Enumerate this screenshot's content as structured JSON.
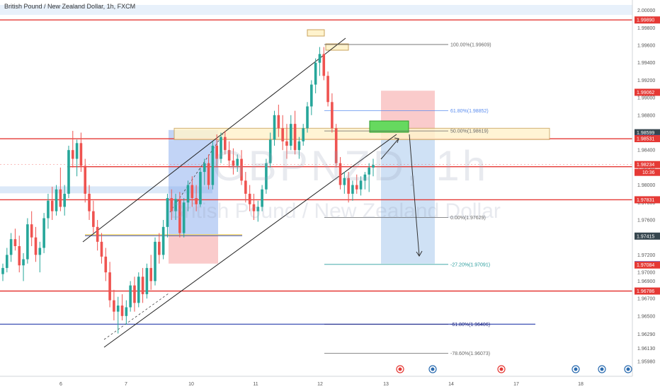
{
  "header": {
    "title": "British Pound / New Zealand Dollar, 1h, FXCM"
  },
  "watermark": {
    "symbol": "GBPNZD, 1h",
    "name": "British Pound / New Zealand Dollar"
  },
  "colors": {
    "up": "#26a69a",
    "down": "#ef5350",
    "resistance": "#e53935",
    "blue_line": "#3f51b5",
    "zone_fill": "#fff3cd",
    "zone_border": "#c9a35c",
    "fib_gray": "#666666",
    "fib_blue": "#5b8def",
    "fib_teal": "#2a9d9d"
  },
  "chart_data": {
    "type": "candlestick",
    "symbol": "GBPNZD",
    "timeframe": "1h",
    "ylim": [
      1.9581,
      2.0007
    ],
    "y_ticks": [
      2.0,
      1.998,
      1.996,
      1.994,
      1.992,
      1.99,
      1.988,
      1.986,
      1.984,
      1.982,
      1.98,
      1.978,
      1.976,
      1.974,
      1.972,
      1.97,
      1.969,
      1.967,
      1.965,
      1.9629,
      1.9613,
      1.9598
    ],
    "y_tick_labels": [
      "2.00000",
      "1.99800",
      "1.99600",
      "1.99400",
      "1.99200",
      "1.99000",
      "1.98800",
      "1.98600",
      "1.98400",
      "1.98200",
      "1.98000",
      "1.97800",
      "1.97600",
      "1.97400",
      "1.97200",
      "1.97000",
      "1.96900",
      "1.96700",
      "1.96500",
      "1.96290",
      "1.96130",
      "1.95980"
    ],
    "x_labels": [
      "6",
      "7",
      "10",
      "11",
      "12",
      "13",
      "14",
      "17",
      "18"
    ],
    "price_labels": [
      {
        "value": 1.9989,
        "text": "1.99890",
        "style": "red"
      },
      {
        "value": 1.99062,
        "text": "1.99062",
        "style": "red"
      },
      {
        "value": 1.98599,
        "text": "1.98599",
        "style": "dark"
      },
      {
        "value": 1.98533,
        "text": "1.98533",
        "style": "blue"
      },
      {
        "value": 1.98531,
        "text": "1.98531",
        "style": "red"
      },
      {
        "value": 1.98234,
        "text": "1.98234",
        "style": "red"
      },
      {
        "value": 1.97831,
        "text": "1.97831",
        "style": "red"
      },
      {
        "value": 1.97415,
        "text": "1.97415",
        "style": "dark"
      },
      {
        "value": 1.97088,
        "text": "1.97088",
        "style": "blue"
      },
      {
        "value": 1.97084,
        "text": "1.97084",
        "style": "red"
      },
      {
        "value": 1.96786,
        "text": "1.96786",
        "style": "red"
      }
    ],
    "countdown": "10:36",
    "horizontal_levels": [
      1.9989,
      1.9853,
      1.9821,
      1.97831,
      1.96786
    ],
    "support_level": 1.96406,
    "supply_zone": [
      1.98531,
      1.98599
    ],
    "fibonacci": [
      {
        "label": "100.00%(1.99609)",
        "value": 1.99609
      },
      {
        "label": "61.80%(1.98852)",
        "value": 1.98852
      },
      {
        "label": "50.00%(1.98619)",
        "value": 1.98619
      },
      {
        "label": "0.00%(1.97629)",
        "value": 1.97629
      },
      {
        "label": "-27.20%(1.97091)",
        "value": 1.97091
      },
      {
        "label": "-61.80%(1.96406)",
        "value": 1.96406
      },
      {
        "label": "-78.60%(1.96073)",
        "value": 1.96073
      }
    ],
    "candles": [
      [
        1.9698,
        1.971,
        1.969,
        1.9705
      ],
      [
        1.9705,
        1.9728,
        1.97,
        1.972
      ],
      [
        1.972,
        1.9745,
        1.9712,
        1.9738
      ],
      [
        1.9738,
        1.975,
        1.9725,
        1.973
      ],
      [
        1.973,
        1.9742,
        1.97,
        1.9708
      ],
      [
        1.9708,
        1.9722,
        1.969,
        1.9715
      ],
      [
        1.9715,
        1.9762,
        1.971,
        1.9755
      ],
      [
        1.9755,
        1.977,
        1.973,
        1.974
      ],
      [
        1.974,
        1.9752,
        1.9712,
        1.972
      ],
      [
        1.972,
        1.9735,
        1.97,
        1.9728
      ],
      [
        1.9728,
        1.9768,
        1.9722,
        1.9762
      ],
      [
        1.9762,
        1.979,
        1.975,
        1.9782
      ],
      [
        1.9782,
        1.9798,
        1.976,
        1.977
      ],
      [
        1.977,
        1.98,
        1.9765,
        1.9795
      ],
      [
        1.9795,
        1.982,
        1.977,
        1.9775
      ],
      [
        1.9775,
        1.98,
        1.9765,
        1.979
      ],
      [
        1.979,
        1.9845,
        1.9785,
        1.984
      ],
      [
        1.984,
        1.9862,
        1.982,
        1.983
      ],
      [
        1.983,
        1.9852,
        1.981,
        1.9848
      ],
      [
        1.9848,
        1.986,
        1.9815,
        1.9822
      ],
      [
        1.9822,
        1.983,
        1.978,
        1.979
      ],
      [
        1.979,
        1.98,
        1.976,
        1.977
      ],
      [
        1.977,
        1.9782,
        1.9745,
        1.9752
      ],
      [
        1.9752,
        1.976,
        1.9725,
        1.9735
      ],
      [
        1.9735,
        1.9745,
        1.971,
        1.9718
      ],
      [
        1.9718,
        1.9728,
        1.969,
        1.97
      ],
      [
        1.97,
        1.9712,
        1.966,
        1.9668
      ],
      [
        1.9668,
        1.968,
        1.9645,
        1.9655
      ],
      [
        1.9655,
        1.9672,
        1.963,
        1.9662
      ],
      [
        1.9662,
        1.9675,
        1.9645,
        1.965
      ],
      [
        1.965,
        1.9668,
        1.964,
        1.966
      ],
      [
        1.966,
        1.969,
        1.9655,
        1.9685
      ],
      [
        1.9685,
        1.9695,
        1.9655,
        1.9665
      ],
      [
        1.9665,
        1.97,
        1.966,
        1.9695
      ],
      [
        1.9695,
        1.9705,
        1.9665,
        1.9675
      ],
      [
        1.9675,
        1.971,
        1.967,
        1.9705
      ],
      [
        1.9705,
        1.972,
        1.968,
        1.969
      ],
      [
        1.969,
        1.974,
        1.9685,
        1.9735
      ],
      [
        1.9735,
        1.9745,
        1.971,
        1.972
      ],
      [
        1.972,
        1.976,
        1.9715,
        1.9752
      ],
      [
        1.9752,
        1.979,
        1.974,
        1.9785
      ],
      [
        1.9785,
        1.9795,
        1.976,
        1.977
      ],
      [
        1.977,
        1.979,
        1.976,
        1.9784
      ],
      [
        1.9784,
        1.9792,
        1.974,
        1.9745
      ],
      [
        1.9745,
        1.9785,
        1.974,
        1.978
      ],
      [
        1.978,
        1.9805,
        1.977,
        1.98
      ],
      [
        1.98,
        1.981,
        1.9775,
        1.9785
      ],
      [
        1.9785,
        1.98,
        1.977,
        1.9778
      ],
      [
        1.9778,
        1.982,
        1.9775,
        1.9815
      ],
      [
        1.9815,
        1.983,
        1.98,
        1.9825
      ],
      [
        1.9825,
        1.9835,
        1.9795,
        1.98
      ],
      [
        1.98,
        1.985,
        1.9795,
        1.9845
      ],
      [
        1.9845,
        1.9858,
        1.982,
        1.983
      ],
      [
        1.983,
        1.986,
        1.9825,
        1.9855
      ],
      [
        1.9855,
        1.9862,
        1.9835,
        1.984
      ],
      [
        1.984,
        1.985,
        1.982,
        1.9828
      ],
      [
        1.9828,
        1.9842,
        1.9812,
        1.9822
      ],
      [
        1.9822,
        1.9835,
        1.9815,
        1.983
      ],
      [
        1.983,
        1.984,
        1.98,
        1.9805
      ],
      [
        1.9805,
        1.9815,
        1.978,
        1.979
      ],
      [
        1.979,
        1.98,
        1.977,
        1.9778
      ],
      [
        1.9778,
        1.979,
        1.976,
        1.977
      ],
      [
        1.977,
        1.9782,
        1.9758,
        1.9775
      ],
      [
        1.9775,
        1.98,
        1.977,
        1.9795
      ],
      [
        1.9795,
        1.983,
        1.979,
        1.9825
      ],
      [
        1.9825,
        1.986,
        1.982,
        1.9852
      ],
      [
        1.9852,
        1.9885,
        1.9845,
        1.988
      ],
      [
        1.988,
        1.9892,
        1.9855,
        1.9865
      ],
      [
        1.9865,
        1.988,
        1.984,
        1.985
      ],
      [
        1.985,
        1.987,
        1.983,
        1.9845
      ],
      [
        1.9845,
        1.988,
        1.984,
        1.987
      ],
      [
        1.987,
        1.9885,
        1.9835,
        1.984
      ],
      [
        1.984,
        1.9855,
        1.983,
        1.985
      ],
      [
        1.985,
        1.987,
        1.9845,
        1.9865
      ],
      [
        1.9865,
        1.9895,
        1.986,
        1.989
      ],
      [
        1.989,
        1.992,
        1.988,
        1.9915
      ],
      [
        1.9915,
        1.9945,
        1.9905,
        1.994
      ],
      [
        1.994,
        1.9958,
        1.9925,
        1.995
      ],
      [
        1.995,
        1.9958,
        1.992,
        1.9925
      ],
      [
        1.9925,
        1.993,
        1.989,
        1.9895
      ],
      [
        1.9895,
        1.9905,
        1.986,
        1.9865
      ],
      [
        1.9865,
        1.987,
        1.982,
        1.9825
      ],
      [
        1.9825,
        1.9832,
        1.9795,
        1.98
      ],
      [
        1.98,
        1.9815,
        1.979,
        1.9808
      ],
      [
        1.9808,
        1.9815,
        1.978,
        1.979
      ],
      [
        1.979,
        1.9805,
        1.9782,
        1.98
      ],
      [
        1.98,
        1.9812,
        1.979,
        1.9795
      ],
      [
        1.9795,
        1.981,
        1.9788,
        1.9805
      ],
      [
        1.9805,
        1.9815,
        1.9795,
        1.9812
      ],
      [
        1.9812,
        1.9825,
        1.9792,
        1.982
      ],
      [
        1.982,
        1.983,
        1.981,
        1.9823
      ]
    ]
  }
}
